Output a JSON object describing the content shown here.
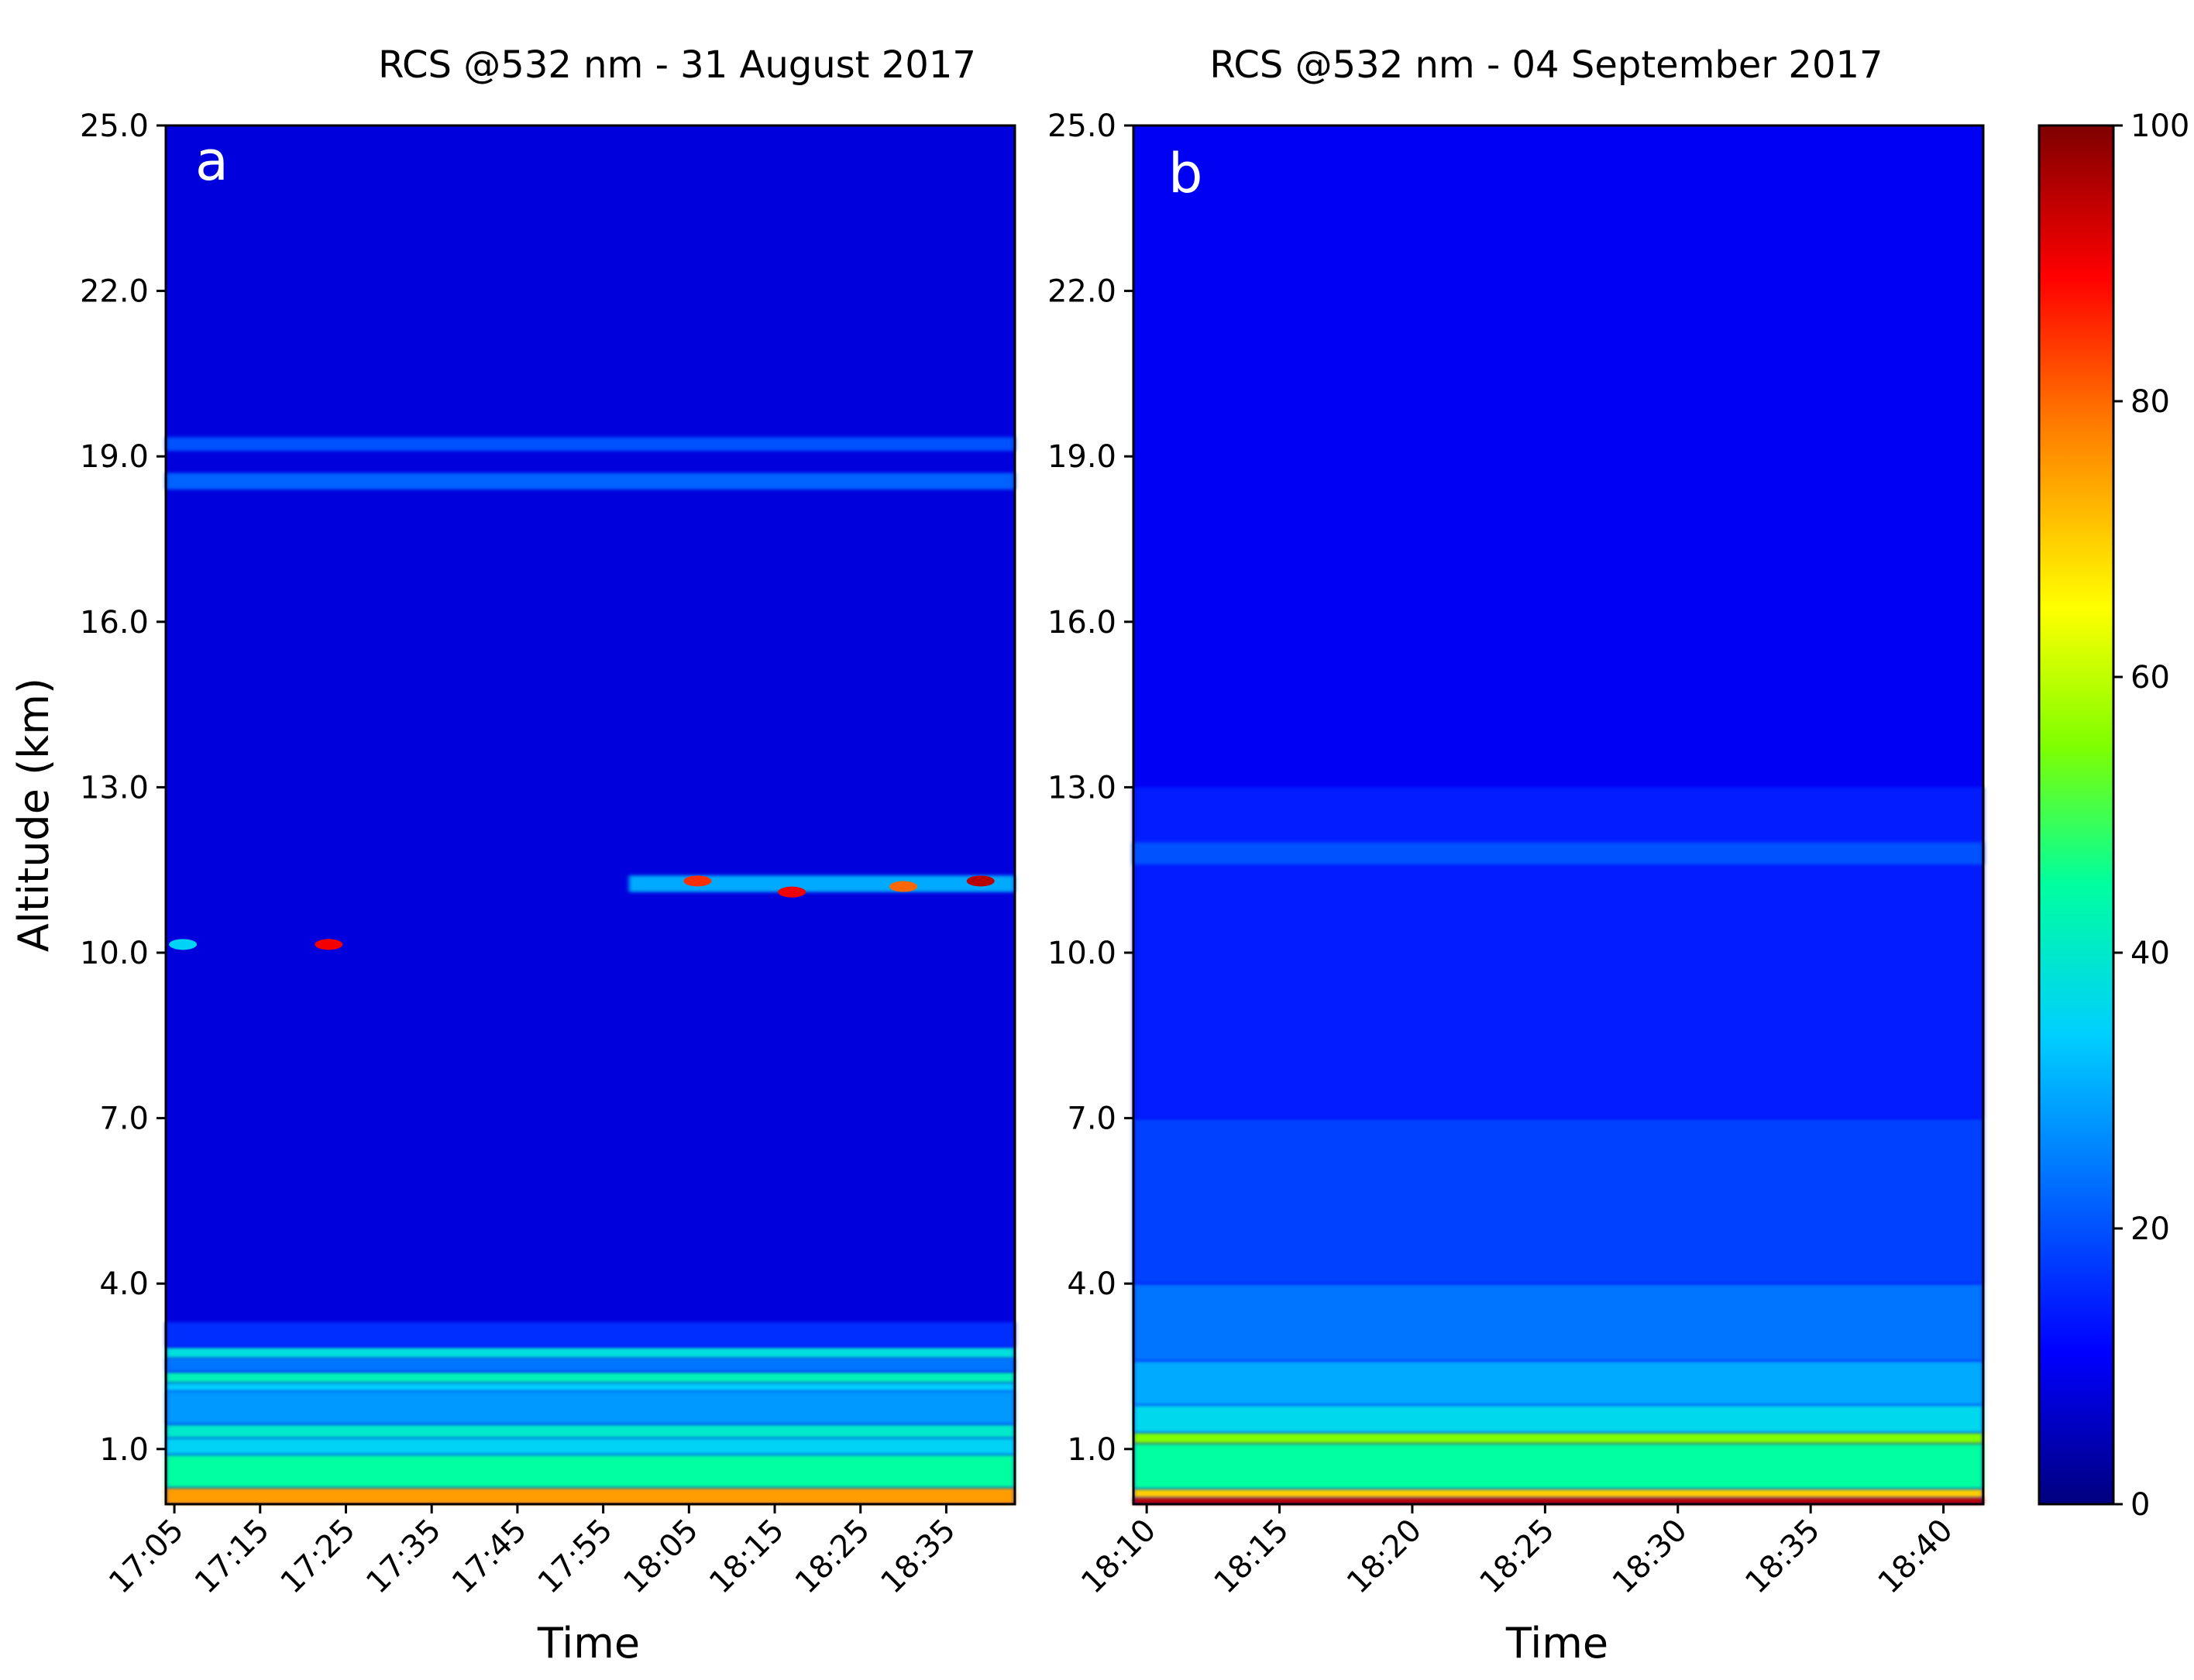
{
  "chart_data": [
    {
      "type": "heatmap",
      "panel_label": "a",
      "title": "RCS @532 nm - 31 August 2017",
      "xlabel": "Time",
      "ylabel": "Altitude (km)",
      "ylim": [
        0,
        25
      ],
      "x_range": [
        "17:04",
        "18:43"
      ],
      "xticks": [
        "17:05",
        "17:15",
        "17:25",
        "17:35",
        "17:45",
        "17:55",
        "18:05",
        "18:15",
        "18:25",
        "18:35"
      ],
      "yticks": [
        "1.0",
        "4.0",
        "7.0",
        "10.0",
        "13.0",
        "16.0",
        "19.0",
        "22.0",
        "25.0"
      ],
      "background_value": 8,
      "layers": [
        {
          "from_time": "17:04",
          "to_time": "18:43",
          "alt_start": 0.0,
          "alt_end": 0.3,
          "value": 75
        },
        {
          "from_time": "17:04",
          "to_time": "18:43",
          "alt_start": 0.3,
          "alt_end": 0.9,
          "value": 45
        },
        {
          "from_time": "17:04",
          "to_time": "18:43",
          "alt_start": 0.9,
          "alt_end": 1.2,
          "value": 35
        },
        {
          "from_time": "17:04",
          "to_time": "18:43",
          "alt_start": 1.2,
          "alt_end": 1.45,
          "value": 40
        },
        {
          "from_time": "17:04",
          "to_time": "18:43",
          "alt_start": 1.45,
          "alt_end": 2.05,
          "value": 28
        },
        {
          "from_time": "17:04",
          "to_time": "18:43",
          "alt_start": 2.05,
          "alt_end": 2.2,
          "value": 34
        },
        {
          "from_time": "17:04",
          "to_time": "18:43",
          "alt_start": 2.2,
          "alt_end": 2.4,
          "value": 42
        },
        {
          "from_time": "17:04",
          "to_time": "18:43",
          "alt_start": 2.4,
          "alt_end": 2.65,
          "value": 24
        },
        {
          "from_time": "17:04",
          "to_time": "18:43",
          "alt_start": 2.65,
          "alt_end": 2.85,
          "value": 38
        },
        {
          "from_time": "17:04",
          "to_time": "18:43",
          "alt_start": 2.85,
          "alt_end": 3.3,
          "value": 16
        },
        {
          "from_time": "17:04",
          "to_time": "18:43",
          "alt_start": 18.4,
          "alt_end": 18.7,
          "value": 22
        },
        {
          "from_time": "17:04",
          "to_time": "18:43",
          "alt_start": 19.1,
          "alt_end": 19.35,
          "value": 20
        },
        {
          "from_time": "17:58",
          "to_time": "18:43",
          "alt_start": 11.1,
          "alt_end": 11.4,
          "value": 30
        }
      ],
      "features": [
        {
          "time": "18:06",
          "alt": 11.3,
          "value": 85
        },
        {
          "time": "18:17",
          "alt": 11.1,
          "value": 90
        },
        {
          "time": "18:30",
          "alt": 11.2,
          "value": 80
        },
        {
          "time": "18:39",
          "alt": 11.3,
          "value": 95
        },
        {
          "time": "17:23",
          "alt": 10.15,
          "value": 90
        },
        {
          "time": "17:06",
          "alt": 10.15,
          "value": 35
        }
      ]
    },
    {
      "type": "heatmap",
      "panel_label": "b",
      "title": "RCS @532 nm - 04 September 2017",
      "xlabel": "Time",
      "ylabel": "",
      "ylim": [
        0,
        25
      ],
      "x_range": [
        "18:09.5",
        "18:41.5"
      ],
      "xticks": [
        "18:10",
        "18:15",
        "18:20",
        "18:25",
        "18:30",
        "18:35",
        "18:40"
      ],
      "yticks": [
        "1.0",
        "4.0",
        "7.0",
        "10.0",
        "13.0",
        "16.0",
        "19.0",
        "22.0",
        "25.0"
      ],
      "background_value": 10,
      "layers": [
        {
          "from_time": "18:09.5",
          "to_time": "18:41.5",
          "alt_start": 0.0,
          "alt_end": 0.12,
          "value": 95
        },
        {
          "from_time": "18:09.5",
          "to_time": "18:41.5",
          "alt_start": 0.12,
          "alt_end": 0.28,
          "value": 70
        },
        {
          "from_time": "18:09.5",
          "to_time": "18:41.5",
          "alt_start": 0.28,
          "alt_end": 1.1,
          "value": 45
        },
        {
          "from_time": "18:09.5",
          "to_time": "18:41.5",
          "alt_start": 1.1,
          "alt_end": 1.3,
          "value": 55
        },
        {
          "from_time": "18:09.5",
          "to_time": "18:41.5",
          "alt_start": 1.3,
          "alt_end": 1.8,
          "value": 36
        },
        {
          "from_time": "18:09.5",
          "to_time": "18:41.5",
          "alt_start": 1.8,
          "alt_end": 2.6,
          "value": 30
        },
        {
          "from_time": "18:09.5",
          "to_time": "18:41.5",
          "alt_start": 2.6,
          "alt_end": 4.0,
          "value": 24
        },
        {
          "from_time": "18:09.5",
          "to_time": "18:41.5",
          "alt_start": 4.0,
          "alt_end": 7.0,
          "value": 18
        },
        {
          "from_time": "18:09.5",
          "to_time": "18:41.5",
          "alt_start": 7.0,
          "alt_end": 13.0,
          "value": 14
        },
        {
          "from_time": "18:09.5",
          "to_time": "18:41.5",
          "alt_start": 11.6,
          "alt_end": 12.0,
          "value": 20
        }
      ],
      "features": []
    }
  ],
  "colorbar": {
    "min": 0,
    "max": 100,
    "ticks": [
      "0",
      "20",
      "40",
      "60",
      "80",
      "100"
    ],
    "colormap": [
      "#00007f",
      "#0000ff",
      "#007fff",
      "#00ffff",
      "#7fff7f",
      "#ffff00",
      "#ff7f00",
      "#ff0000",
      "#7f0000"
    ]
  }
}
